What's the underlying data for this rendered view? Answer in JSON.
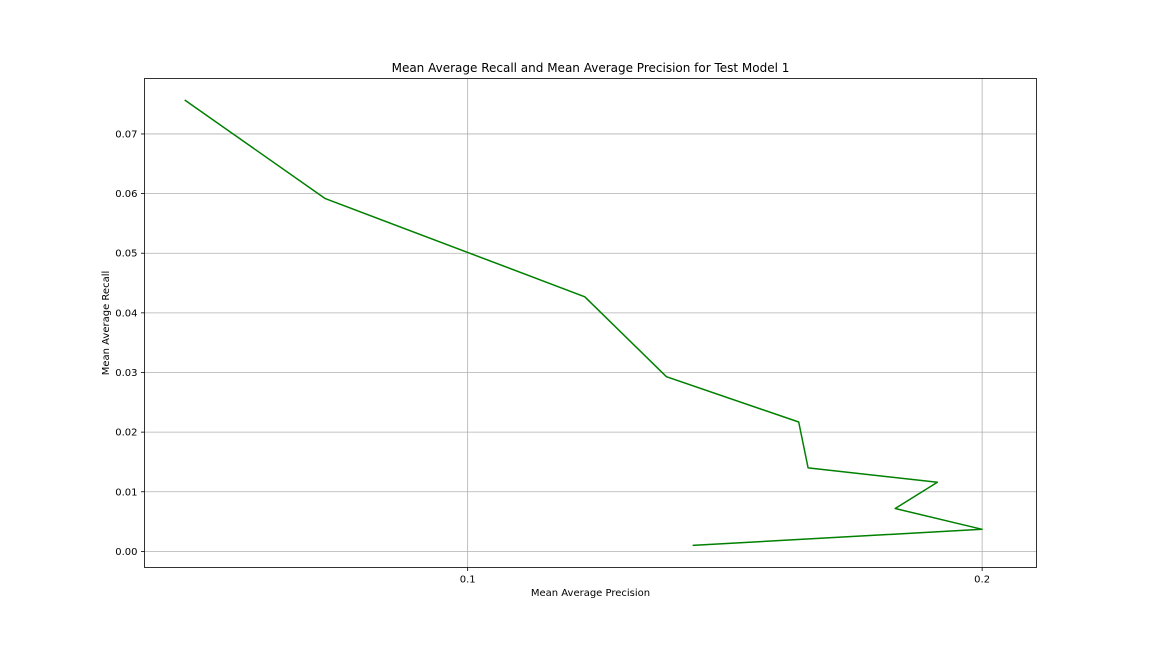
{
  "chart_data": {
    "type": "line",
    "title": "Mean Average Recall and Mean Average Precision for Test Model 1",
    "xlabel": "Mean Average Precision",
    "ylabel": "Mean Average Recall",
    "x_scale": "log",
    "xlim": [
      0.0647,
      0.2152
    ],
    "ylim": [
      -0.0027,
      0.0793
    ],
    "x_ticks": [
      0.1,
      0.2
    ],
    "x_tick_labels": [
      "0.1",
      "0.2"
    ],
    "y_ticks": [
      0.0,
      0.01,
      0.02,
      0.03,
      0.04,
      0.05,
      0.06,
      0.07
    ],
    "y_tick_labels": [
      "0.00",
      "0.01",
      "0.02",
      "0.03",
      "0.04",
      "0.05",
      "0.06",
      "0.07"
    ],
    "grid": true,
    "series": [
      {
        "color": "#008000",
        "x": [
          0.0683,
          0.0825,
          0.1171,
          0.1307,
          0.1562,
          0.1582,
          0.1883,
          0.1779,
          0.2,
          0.1354
        ],
        "y": [
          0.0757,
          0.0592,
          0.0427,
          0.0293,
          0.0217,
          0.014,
          0.0116,
          0.0072,
          0.0037,
          0.001
        ]
      }
    ]
  }
}
